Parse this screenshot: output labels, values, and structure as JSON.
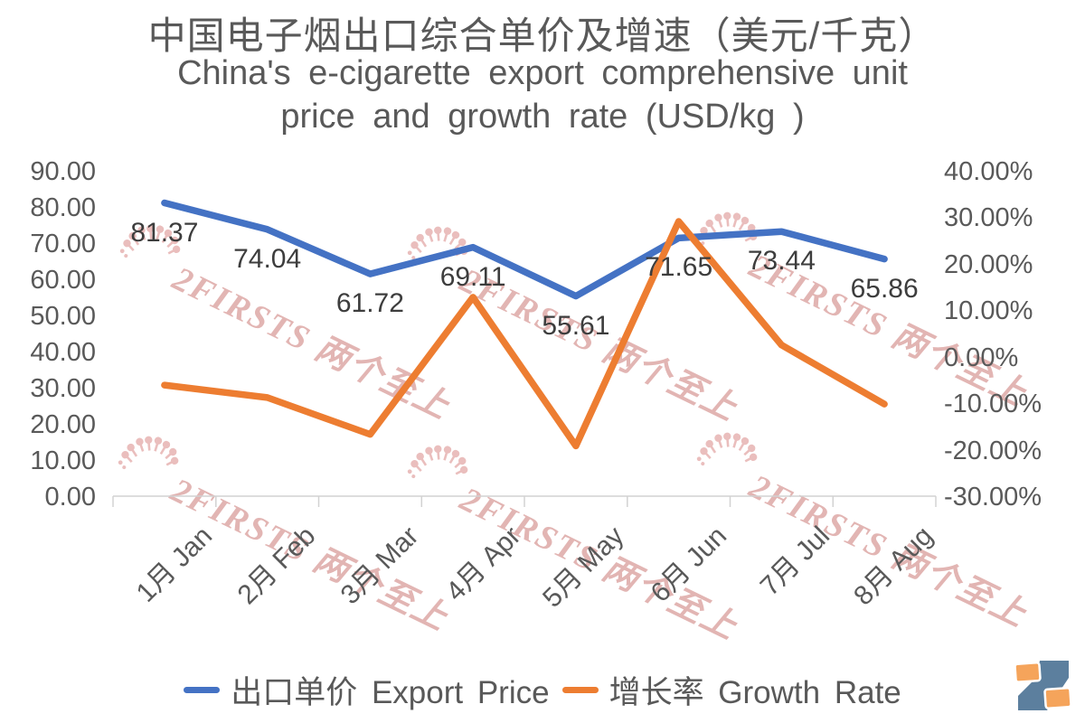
{
  "title": {
    "zh": "中国电子烟出口综合单价及增速（美元/千克）",
    "en_line1": "China's e-cigarette export comprehensive unit",
    "en_line2": "price and growth rate (USD/kg )"
  },
  "chart_data": {
    "type": "line",
    "categories": [
      "1月 Jan",
      "2月 Feb",
      "3月 Mar",
      "4月 Apr",
      "5月 May",
      "6月 Jun",
      "7月 Jul",
      "8月 Aug"
    ],
    "series": [
      {
        "name": "出口单价 Export Price",
        "axis": "left",
        "color": "#4472C4",
        "show_labels": true,
        "values": [
          81.37,
          74.04,
          61.72,
          69.11,
          55.61,
          71.65,
          73.44,
          65.86
        ],
        "labels": [
          "81.37",
          "74.04",
          "61.72",
          "69.11",
          "55.61",
          "71.65",
          "73.44",
          "65.86"
        ]
      },
      {
        "name": "增长率 Growth Rate",
        "axis": "right",
        "color": "#ED7D31",
        "show_labels": false,
        "values": [
          -5.9,
          -8.6,
          -16.5,
          13.0,
          -19.0,
          29.3,
          2.7,
          -10.0
        ]
      }
    ],
    "left_axis": {
      "min": 0,
      "max": 90,
      "ticks": [
        "90.00",
        "80.00",
        "70.00",
        "60.00",
        "50.00",
        "40.00",
        "30.00",
        "20.00",
        "10.00",
        "0.00"
      ]
    },
    "right_axis": {
      "min": -30,
      "max": 40,
      "ticks": [
        "40.00%",
        "30.00%",
        "20.00%",
        "10.00%",
        "0.00%",
        "-10.00%",
        "-20.00%",
        "-30.00%"
      ]
    },
    "grid": false,
    "legend_position": "bottom"
  },
  "legend": {
    "items": [
      {
        "label": "出口单价 Export Price",
        "color": "#4472C4"
      },
      {
        "label": "增长率 Growth Rate",
        "color": "#ED7D31"
      }
    ]
  },
  "watermark": {
    "text": "2FIRSTS 两个至上",
    "color": "#DCA3A1"
  },
  "logo": {
    "name": "2firsts-logo",
    "blue": "#5C7F9E",
    "orange": "#F5A45B"
  }
}
